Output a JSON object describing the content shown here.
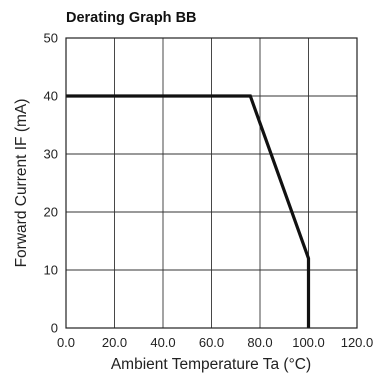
{
  "chart_data": {
    "type": "line",
    "title": "Derating Graph BB",
    "xlabel": "Ambient Temperature Ta (°C)",
    "ylabel": "Forward Current IF (mA)",
    "xlim": [
      0,
      120
    ],
    "ylim": [
      0,
      50
    ],
    "x_ticks": [
      "0.0",
      "20.0",
      "40.0",
      "60.0",
      "80.0",
      "100.0",
      "120.0"
    ],
    "y_ticks": [
      "0",
      "10",
      "20",
      "30",
      "40",
      "50"
    ],
    "grid": true,
    "series": [
      {
        "x": [
          0,
          76,
          100,
          100
        ],
        "y": [
          40,
          40,
          12,
          0
        ],
        "color": "#111111"
      }
    ]
  }
}
